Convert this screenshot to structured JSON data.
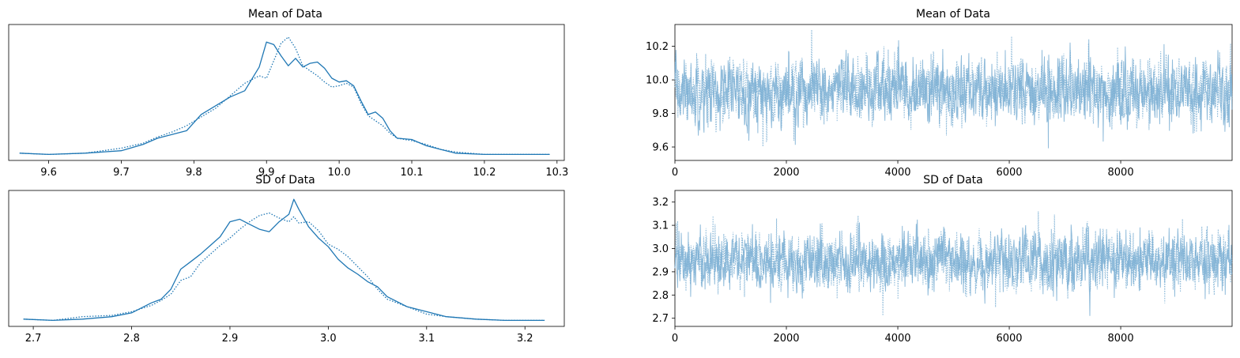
{
  "colors": {
    "line": "#1f77b4",
    "trace": "#7bafd4",
    "axis": "#000000",
    "background": "#ffffff"
  },
  "chart_data": [
    {
      "type": "line",
      "title": "Mean of Data",
      "xlabel": "",
      "ylabel": "",
      "xlim": [
        9.545,
        10.31
      ],
      "xticks": [
        "9.6",
        "9.7",
        "9.8",
        "9.9",
        "10.0",
        "10.1",
        "10.2",
        "10.3"
      ],
      "yticks": [],
      "series": [
        {
          "style": "solid",
          "x": [
            9.56,
            9.6,
            9.65,
            9.7,
            9.73,
            9.75,
            9.77,
            9.79,
            9.81,
            9.83,
            9.85,
            9.87,
            9.89,
            9.9,
            9.91,
            9.92,
            9.93,
            9.94,
            9.95,
            9.96,
            9.97,
            9.98,
            9.99,
            10.0,
            10.01,
            10.02,
            10.03,
            10.04,
            10.05,
            10.06,
            10.07,
            10.08,
            10.1,
            10.12,
            10.14,
            10.16,
            10.2,
            10.25,
            10.29
          ],
          "y": [
            0.02,
            0.01,
            0.02,
            0.04,
            0.09,
            0.14,
            0.17,
            0.2,
            0.33,
            0.4,
            0.47,
            0.52,
            0.71,
            0.91,
            0.89,
            0.8,
            0.72,
            0.78,
            0.71,
            0.74,
            0.75,
            0.7,
            0.62,
            0.59,
            0.6,
            0.56,
            0.44,
            0.33,
            0.35,
            0.3,
            0.2,
            0.14,
            0.13,
            0.08,
            0.05,
            0.02,
            0.01,
            0.01,
            0.01
          ]
        },
        {
          "style": "dotted",
          "x": [
            9.56,
            9.6,
            9.65,
            9.7,
            9.73,
            9.75,
            9.77,
            9.79,
            9.81,
            9.83,
            9.85,
            9.87,
            9.89,
            9.9,
            9.91,
            9.92,
            9.93,
            9.94,
            9.95,
            9.96,
            9.97,
            9.98,
            9.99,
            10.0,
            10.01,
            10.02,
            10.03,
            10.04,
            10.05,
            10.06,
            10.07,
            10.08,
            10.1,
            10.12,
            10.14,
            10.16,
            10.2,
            10.25,
            10.29
          ],
          "y": [
            0.02,
            0.01,
            0.02,
            0.06,
            0.1,
            0.15,
            0.19,
            0.24,
            0.31,
            0.38,
            0.48,
            0.58,
            0.64,
            0.62,
            0.76,
            0.9,
            0.95,
            0.86,
            0.72,
            0.68,
            0.64,
            0.59,
            0.55,
            0.56,
            0.58,
            0.55,
            0.42,
            0.32,
            0.28,
            0.24,
            0.18,
            0.14,
            0.12,
            0.09,
            0.05,
            0.03,
            0.01,
            0.01,
            0.01
          ]
        }
      ]
    },
    {
      "type": "line",
      "title": "Mean of Data",
      "xlabel": "",
      "ylabel": "",
      "xlim": [
        0,
        9999
      ],
      "ylim": [
        9.52,
        10.33
      ],
      "xticks": [
        "0",
        "2000",
        "4000",
        "6000",
        "8000"
      ],
      "yticks": [
        "9.6",
        "9.8",
        "10.0",
        "10.2"
      ],
      "trace": {
        "n": 10000,
        "mean": 9.93,
        "sd": 0.095,
        "chains": 2
      }
    },
    {
      "type": "line",
      "title": "SD of Data",
      "xlabel": "",
      "ylabel": "",
      "xlim": [
        2.675,
        3.24
      ],
      "xticks": [
        "2.7",
        "2.8",
        "2.9",
        "3.0",
        "3.1",
        "3.2"
      ],
      "yticks": [],
      "series": [
        {
          "style": "solid",
          "x": [
            2.69,
            2.72,
            2.75,
            2.78,
            2.8,
            2.82,
            2.83,
            2.84,
            2.85,
            2.86,
            2.87,
            2.88,
            2.89,
            2.9,
            2.91,
            2.92,
            2.93,
            2.94,
            2.95,
            2.96,
            2.965,
            2.97,
            2.98,
            2.99,
            3.0,
            3.01,
            3.02,
            3.03,
            3.04,
            3.05,
            3.06,
            3.07,
            3.08,
            3.1,
            3.12,
            3.15,
            3.18,
            3.21,
            3.22
          ],
          "y": [
            0.02,
            0.01,
            0.02,
            0.04,
            0.07,
            0.15,
            0.18,
            0.26,
            0.42,
            0.48,
            0.54,
            0.61,
            0.68,
            0.8,
            0.82,
            0.78,
            0.74,
            0.72,
            0.8,
            0.86,
            0.98,
            0.9,
            0.76,
            0.67,
            0.6,
            0.5,
            0.43,
            0.38,
            0.32,
            0.28,
            0.2,
            0.16,
            0.12,
            0.08,
            0.04,
            0.02,
            0.01,
            0.01,
            0.01
          ]
        },
        {
          "style": "dotted",
          "x": [
            2.69,
            2.72,
            2.75,
            2.78,
            2.8,
            2.82,
            2.83,
            2.84,
            2.85,
            2.86,
            2.87,
            2.88,
            2.89,
            2.9,
            2.91,
            2.92,
            2.93,
            2.94,
            2.95,
            2.96,
            2.965,
            2.97,
            2.98,
            2.99,
            3.0,
            3.01,
            3.02,
            3.03,
            3.04,
            3.05,
            3.06,
            3.07,
            3.08,
            3.1,
            3.12,
            3.15,
            3.18,
            3.21,
            3.22
          ],
          "y": [
            0.02,
            0.01,
            0.04,
            0.05,
            0.08,
            0.13,
            0.17,
            0.22,
            0.33,
            0.36,
            0.47,
            0.54,
            0.61,
            0.67,
            0.74,
            0.8,
            0.85,
            0.87,
            0.83,
            0.8,
            0.84,
            0.79,
            0.8,
            0.73,
            0.62,
            0.58,
            0.52,
            0.44,
            0.36,
            0.26,
            0.18,
            0.15,
            0.12,
            0.06,
            0.04,
            0.02,
            0.01,
            0.01,
            0.01
          ]
        }
      ]
    },
    {
      "type": "line",
      "title": "SD of Data",
      "xlabel": "",
      "ylabel": "",
      "xlim": [
        0,
        9999
      ],
      "ylim": [
        2.665,
        3.25
      ],
      "xticks": [
        "0",
        "2000",
        "4000",
        "6000",
        "8000"
      ],
      "yticks": [
        "2.7",
        "2.8",
        "2.9",
        "3.0",
        "3.1",
        "3.2"
      ],
      "trace": {
        "n": 10000,
        "mean": 2.945,
        "sd": 0.062,
        "chains": 2
      }
    }
  ]
}
